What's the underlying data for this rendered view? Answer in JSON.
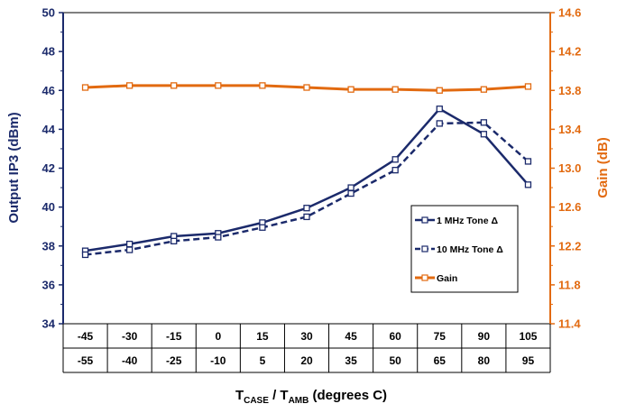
{
  "chart_data": {
    "type": "line",
    "x_labels_case": [
      "-45",
      "-30",
      "-15",
      "0",
      "15",
      "30",
      "45",
      "60",
      "75",
      "90",
      "105"
    ],
    "x_labels_amb": [
      "-55",
      "-40",
      "-25",
      "-10",
      "5",
      "20",
      "35",
      "50",
      "65",
      "80",
      "95"
    ],
    "xlabel_main": "T",
    "xlabel_sub1": "CASE",
    "xlabel_mid": " / T",
    "xlabel_sub2": "AMB",
    "xlabel_tail": " (degrees C)",
    "ylabel_left": "Output IP3 (dBm)",
    "ylabel_right": "Gain (dB)",
    "ylim_left": [
      34,
      50
    ],
    "ylim_right": [
      11.4,
      14.6
    ],
    "yticks_left": [
      "34",
      "36",
      "38",
      "40",
      "42",
      "44",
      "46",
      "48",
      "50"
    ],
    "yticks_right": [
      "11.4",
      "11.8",
      "12.2",
      "12.6",
      "13.0",
      "13.4",
      "13.8",
      "14.2",
      "14.6"
    ],
    "legend_position": "right-middle",
    "series": [
      {
        "name": "1 MHz Tone Δ",
        "axis": "left",
        "color": "#1b2a6b",
        "dash": false,
        "marker": "square",
        "values": [
          37.75,
          38.1,
          38.5,
          38.65,
          39.2,
          39.95,
          41.0,
          42.45,
          45.05,
          43.75,
          41.15
        ]
      },
      {
        "name": "10 MHz Tone Δ",
        "axis": "left",
        "color": "#1b2a6b",
        "dash": true,
        "marker": "square",
        "values": [
          37.55,
          37.8,
          38.25,
          38.45,
          38.95,
          39.5,
          40.7,
          41.9,
          44.3,
          44.35,
          42.35
        ]
      },
      {
        "name": "Gain",
        "axis": "right",
        "color": "#e26a10",
        "dash": false,
        "marker": "square",
        "values": [
          13.83,
          13.85,
          13.85,
          13.85,
          13.85,
          13.83,
          13.81,
          13.81,
          13.8,
          13.81,
          13.84
        ]
      }
    ],
    "colors": {
      "left_axis": "#1b2a6b",
      "right_axis": "#e26a10",
      "gridline": "#000000"
    }
  }
}
